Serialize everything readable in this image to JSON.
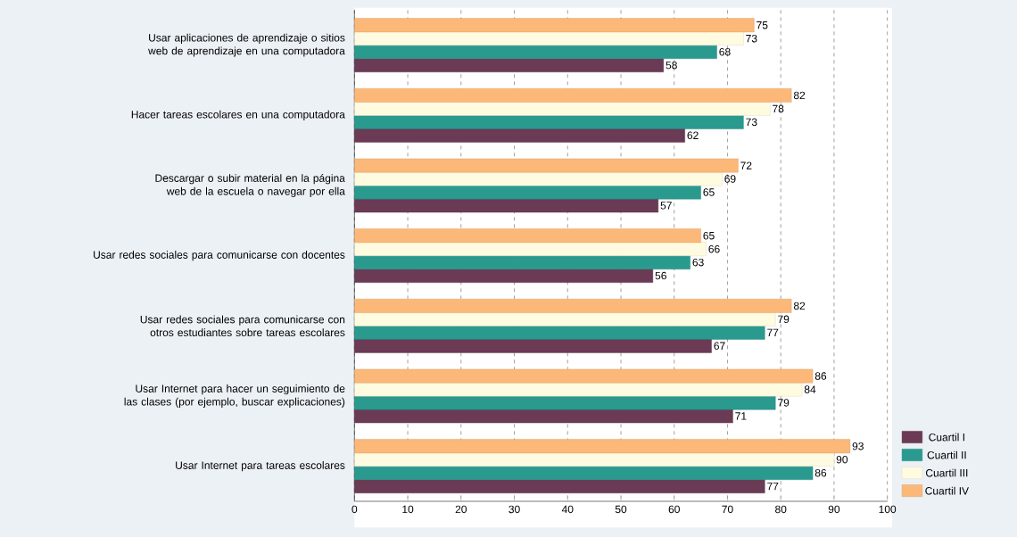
{
  "chart_data": {
    "type": "bar",
    "orientation": "horizontal",
    "categories": [
      "Usar aplicaciones de aprendizaje o sitios web de aprendizaje en una computadora",
      "Hacer tareas escolares en una computadora",
      "Descargar o subir material en la página web de la escuela o navegar por ella",
      "Usar redes sociales para comunicarse con docentes",
      "Usar redes sociales para comunicarse con otros estudiantes sobre tareas escolares",
      "Usar Internet para hacer un seguimiento de las clases (por ejemplo, buscar explicaciones)",
      "Usar Internet para tareas escolares"
    ],
    "series": [
      {
        "name": "Cuartil I",
        "color": "#6b3a55",
        "values": [
          58,
          62,
          57,
          56,
          67,
          71,
          77
        ]
      },
      {
        "name": "Cuartil II",
        "color": "#2a9a8f",
        "values": [
          68,
          73,
          65,
          63,
          77,
          79,
          86
        ]
      },
      {
        "name": "Cuartil III",
        "color": "#fffbe0",
        "values": [
          73,
          78,
          69,
          66,
          79,
          84,
          90
        ]
      },
      {
        "name": "Cuartil IV",
        "color": "#fbb878",
        "values": [
          75,
          82,
          72,
          65,
          82,
          86,
          93
        ]
      }
    ],
    "xlim": [
      0,
      100
    ],
    "xticks": [
      0,
      10,
      20,
      30,
      40,
      50,
      60,
      70,
      80,
      90,
      100
    ],
    "grid": "x",
    "legend": "bottom right",
    "data_labels": true
  }
}
